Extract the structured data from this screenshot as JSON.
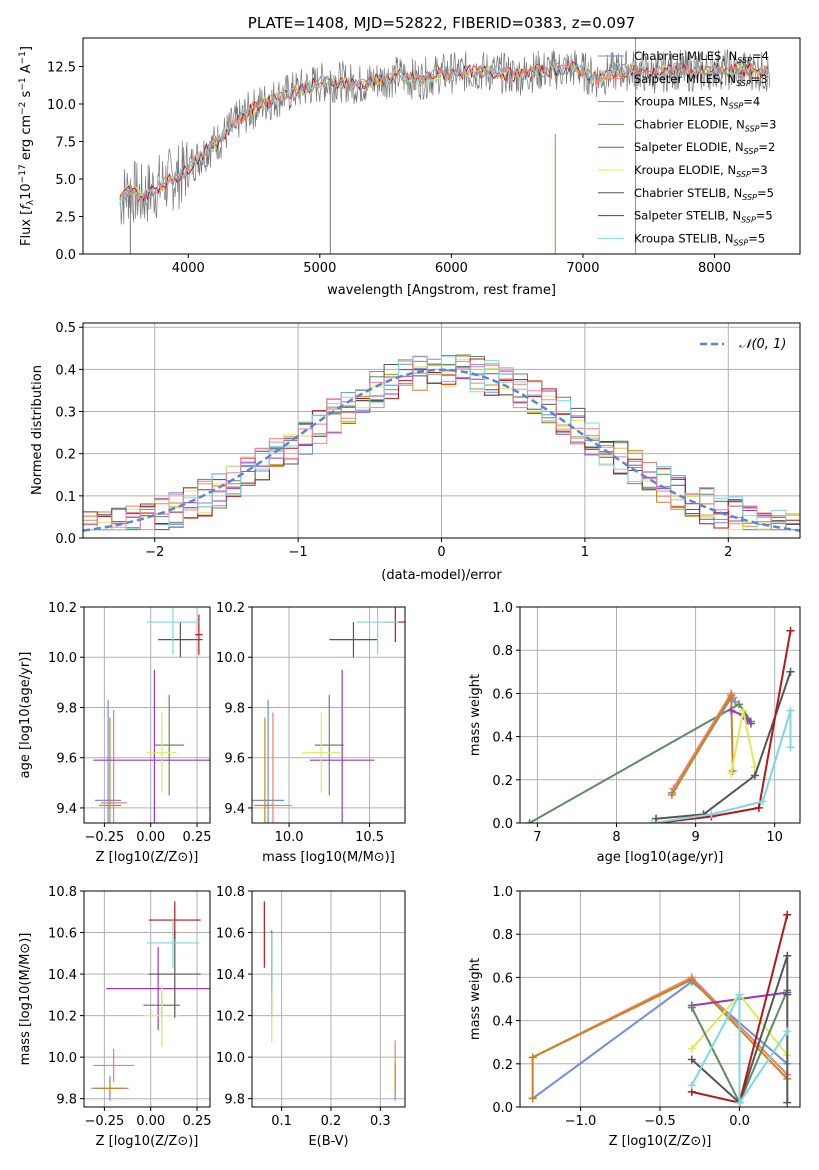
{
  "colors": {
    "cM": "#6f8fd6",
    "sM": "#e9826f",
    "kM": "#c8851f",
    "cE": "#5f8d5f",
    "sE": "#9b3bb8",
    "kE": "#d9ec5a",
    "cS": "#555555",
    "sS": "#b41717",
    "kS": "#7fd8e0",
    "grid": "#b0b0b0",
    "spec": "#777777",
    "gauss": "#5b84d6",
    "pink": "#ea88a8"
  },
  "chart_data": [
    {
      "id": "spectrum",
      "type": "line",
      "title": "PLATE=1408, MJD=52822, FIBERID=0383, z=0.097",
      "xlabel": "wavelength [Angstrom, rest frame]",
      "ylabel": "Flux [f_λ 10^-17 erg cm^-2 s^-1 A^-1]",
      "xlim": [
        3200,
        8650
      ],
      "ylim": [
        0,
        14.4
      ],
      "xticks": [
        4000,
        5000,
        6000,
        7000,
        8000
      ],
      "yticks": [
        0.0,
        2.5,
        5.0,
        7.5,
        10.0,
        12.5
      ],
      "legend_position": "upper right",
      "legend": [
        "Chabrier MILES, N_SSP=4",
        "Salpeter MILES, N_SSP=3",
        "Kroupa MILES, N_SSP=4",
        "Chabrier ELODIE, N_SSP=3",
        "Salpeter ELODIE, N_SSP=2",
        "Kroupa ELODIE, N_SSP=3",
        "Chabrier STELIB, N_SSP=5",
        "Salpeter STELIB, N_SSP=5",
        "Kroupa STELIB, N_SSP=5"
      ],
      "data_wavelength": [
        3480,
        3550,
        3650,
        3750,
        3850,
        3950,
        4050,
        4150,
        4250,
        4350,
        4450,
        4550,
        4700,
        4850,
        5000,
        5150,
        5300,
        5450,
        5600,
        5750,
        5900,
        6050,
        6200,
        6350,
        6500,
        6650,
        6800,
        6950,
        7100,
        7250,
        7400,
        7500,
        7600,
        7700,
        7800,
        7900,
        8000,
        8100,
        8200,
        8300,
        8420
      ],
      "data_flux": [
        3.6,
        4.3,
        3.8,
        4.4,
        4.9,
        5.3,
        6.2,
        7.0,
        7.7,
        8.7,
        9.4,
        10.0,
        10.5,
        11.0,
        11.4,
        11.5,
        11.3,
        11.6,
        11.9,
        11.6,
        12.0,
        12.1,
        12.2,
        12.1,
        11.9,
        12.2,
        12.3,
        12.4,
        11.7,
        12.2,
        12.3,
        12.0,
        12.1,
        12.3,
        12.2,
        12.1,
        12.4,
        12.3,
        12.2,
        12.3,
        12.0
      ]
    },
    {
      "id": "residuals",
      "type": "step",
      "xlabel": "(data-model)/error",
      "ylabel": "Normed distribution",
      "xlim": [
        -2.5,
        2.5
      ],
      "ylim": [
        0,
        0.51
      ],
      "xticks": [
        -2,
        -1,
        0,
        1,
        2
      ],
      "yticks": [
        0.0,
        0.1,
        0.2,
        0.3,
        0.4,
        0.5
      ],
      "legend": [
        "𝒩(0, 1)"
      ],
      "legend_position": "upper right",
      "bin_width": 0.1
    },
    {
      "id": "age_vs_Z",
      "type": "errorbar",
      "xlabel": "Z [log10(Z/Z⊙)]",
      "ylabel": "age  [log10(age/yr)]",
      "xlim": [
        -0.36,
        0.32
      ],
      "ylim": [
        9.34,
        10.2
      ],
      "xticks": [
        -0.25,
        0.0,
        0.25
      ],
      "yticks": [
        9.4,
        9.6,
        9.8,
        10.0,
        10.2
      ],
      "points": [
        {
          "s": "cM",
          "x": -0.23,
          "xe": 0.07,
          "y": 9.43,
          "ye": 0.4
        },
        {
          "s": "sM",
          "x": -0.2,
          "xe": 0.07,
          "y": 9.42,
          "ye": 0.37
        },
        {
          "s": "kM",
          "x": -0.22,
          "xe": 0.06,
          "y": 9.41,
          "ye": 0.35
        },
        {
          "s": "cE",
          "x": 0.1,
          "xe": 0.08,
          "y": 9.65,
          "ye": 0.2
        },
        {
          "s": "sE",
          "x": 0.02,
          "xe": 0.33,
          "y": 9.59,
          "ye": 0.36
        },
        {
          "s": "kE",
          "x": 0.06,
          "xe": 0.08,
          "y": 9.62,
          "ye": 0.16
        },
        {
          "s": "cS",
          "x": 0.16,
          "xe": 0.12,
          "y": 10.07,
          "ye": 0.07
        },
        {
          "s": "sS",
          "x": 0.26,
          "xe": 0.02,
          "y": 10.09,
          "ye": 0.08
        },
        {
          "s": "kS",
          "x": 0.12,
          "xe": 0.14,
          "y": 10.14,
          "ye": 0.13
        }
      ]
    },
    {
      "id": "age_vs_mass",
      "type": "errorbar",
      "xlabel": "mass [log10(M/M⊙)]",
      "ylabel": "",
      "xlim": [
        9.77,
        10.72
      ],
      "ylim": [
        9.34,
        10.2
      ],
      "xticks": [
        10.0,
        10.5
      ],
      "yticks": [
        9.4,
        9.6,
        9.8,
        10.0,
        10.2
      ],
      "points": [
        {
          "s": "cM",
          "x": 9.87,
          "xe": 0.1,
          "y": 9.43,
          "ye": 0.4
        },
        {
          "s": "sM",
          "x": 9.9,
          "xe": 0.12,
          "y": 9.41,
          "ye": 0.37
        },
        {
          "s": "kM",
          "x": 9.85,
          "xe": 0.05,
          "y": 9.41,
          "ye": 0.35
        },
        {
          "s": "cE",
          "x": 10.25,
          "xe": 0.09,
          "y": 9.65,
          "ye": 0.2
        },
        {
          "s": "sE",
          "x": 10.33,
          "xe": 0.2,
          "y": 9.59,
          "ye": 0.36
        },
        {
          "s": "kE",
          "x": 10.2,
          "xe": 0.12,
          "y": 9.62,
          "ye": 0.16
        },
        {
          "s": "cS",
          "x": 10.4,
          "xe": 0.15,
          "y": 10.07,
          "ye": 0.07
        },
        {
          "s": "sS",
          "x": 10.66,
          "xe": 0.07,
          "y": 10.14,
          "ye": 0.08
        },
        {
          "s": "kS",
          "x": 10.55,
          "xe": 0.13,
          "y": 10.14,
          "ye": 0.13
        }
      ]
    },
    {
      "id": "weight_vs_age",
      "type": "line",
      "xlabel": "age  [log10(age/yr)]",
      "ylabel": "mass weight",
      "xlim": [
        6.78,
        10.32
      ],
      "ylim": [
        0,
        1
      ],
      "xticks": [
        7,
        8,
        9,
        10
      ],
      "yticks": [
        0.0,
        0.2,
        0.4,
        0.6,
        0.8,
        1.0
      ],
      "series": [
        {
          "s": "cE",
          "x": [
            6.9,
            9.55,
            9.7
          ],
          "y": [
            0.0,
            0.55,
            0.47
          ]
        },
        {
          "s": "cM",
          "x": [
            8.7,
            9.45,
            9.5
          ],
          "y": [
            0.14,
            0.58,
            0.56
          ]
        },
        {
          "s": "sM",
          "x": [
            8.72,
            9.45,
            9.48
          ],
          "y": [
            0.16,
            0.6,
            0.58
          ]
        },
        {
          "s": "kM",
          "x": [
            8.7,
            9.45,
            9.47
          ],
          "y": [
            0.13,
            0.59,
            0.24
          ]
        },
        {
          "s": "sE",
          "x": [
            9.45,
            9.6,
            9.65,
            9.7
          ],
          "y": [
            0.52,
            0.5,
            0.48,
            0.46
          ]
        },
        {
          "s": "kE",
          "x": [
            9.45,
            9.6,
            9.75
          ],
          "y": [
            0.23,
            0.52,
            0.26
          ]
        },
        {
          "s": "cS",
          "x": [
            8.5,
            9.1,
            9.75,
            10.2
          ],
          "y": [
            0.02,
            0.04,
            0.22,
            0.7
          ]
        },
        {
          "s": "sS",
          "x": [
            8.5,
            9.2,
            9.8,
            10.2
          ],
          "y": [
            0.0,
            0.03,
            0.07,
            0.89
          ]
        },
        {
          "s": "kS",
          "x": [
            8.45,
            9.2,
            9.85,
            10.2,
            10.2
          ],
          "y": [
            0.0,
            0.04,
            0.1,
            0.52,
            0.35
          ]
        }
      ]
    },
    {
      "id": "mass_vs_Z",
      "type": "errorbar",
      "xlabel": "Z [log10(Z/Z⊙)]",
      "ylabel": "mass [log10(M/M⊙)]",
      "xlim": [
        -0.36,
        0.32
      ],
      "ylim": [
        9.76,
        10.8
      ],
      "xticks": [
        -0.25,
        0.0,
        0.25
      ],
      "yticks": [
        9.8,
        10.0,
        10.2,
        10.4,
        10.6,
        10.8
      ],
      "points": [
        {
          "s": "cM",
          "x": -0.22,
          "xe": 0.1,
          "y": 9.85,
          "ye": 0.06
        },
        {
          "s": "sM",
          "x": -0.2,
          "xe": 0.11,
          "y": 9.96,
          "ye": 0.08
        },
        {
          "s": "kM",
          "x": -0.22,
          "xe": 0.08,
          "y": 9.85,
          "ye": 0.04
        },
        {
          "s": "cE",
          "x": 0.06,
          "xe": 0.1,
          "y": 10.25,
          "ye": 0.06
        },
        {
          "s": "sE",
          "x": 0.04,
          "xe": 0.28,
          "y": 10.33,
          "ye": 0.2
        },
        {
          "s": "kE",
          "x": 0.06,
          "xe": 0.1,
          "y": 10.2,
          "ye": 0.15
        },
        {
          "s": "cS",
          "x": 0.13,
          "xe": 0.14,
          "y": 10.4,
          "ye": 0.21
        },
        {
          "s": "sS",
          "x": 0.13,
          "xe": 0.14,
          "y": 10.66,
          "ye": 0.09
        },
        {
          "s": "kS",
          "x": 0.12,
          "xe": 0.14,
          "y": 10.55,
          "ye": 0.12
        }
      ]
    },
    {
      "id": "mass_vs_EBV",
      "type": "errorbar",
      "xlabel": "E(B-V)",
      "ylabel": "",
      "xlim": [
        0.04,
        0.35
      ],
      "ylim": [
        9.76,
        10.8
      ],
      "xticks": [
        0.1,
        0.2,
        0.3
      ],
      "yticks": [
        9.8,
        10.0,
        10.2,
        10.4,
        10.6,
        10.8
      ],
      "points": [
        {
          "s": "sS",
          "x": 0.065,
          "xe": 0.0,
          "y": 10.59,
          "ye": 0.16
        },
        {
          "s": "cS",
          "x": 0.08,
          "xe": 0.0,
          "y": 10.4,
          "ye": 0.21
        },
        {
          "s": "kE",
          "x": 0.08,
          "xe": 0.0,
          "y": 10.2,
          "ye": 0.13
        },
        {
          "s": "kS",
          "x": 0.08,
          "xe": 0.0,
          "y": 10.45,
          "ye": 0.15
        },
        {
          "s": "cM",
          "x": 0.33,
          "xe": 0.0,
          "y": 9.85,
          "ye": 0.06
        },
        {
          "s": "sM",
          "x": 0.33,
          "xe": 0.0,
          "y": 9.98,
          "ye": 0.1
        },
        {
          "s": "kM",
          "x": 0.33,
          "xe": 0.0,
          "y": 9.9,
          "ye": 0.07
        }
      ]
    },
    {
      "id": "weight_vs_Z",
      "type": "line",
      "xlabel": "Z [log10(Z/Z⊙)]",
      "ylabel": "mass weight",
      "xlim": [
        -1.38,
        0.38
      ],
      "ylim": [
        0,
        1
      ],
      "xticks": [
        -1.0,
        -0.5,
        0.0
      ],
      "yticks": [
        0.0,
        0.2,
        0.4,
        0.6,
        0.8,
        1.0
      ],
      "series": [
        {
          "s": "cM",
          "x": [
            -1.3,
            -0.3,
            0.3
          ],
          "y": [
            0.04,
            0.58,
            0.2
          ]
        },
        {
          "s": "sM",
          "x": [
            -1.3,
            -0.3,
            0.3
          ],
          "y": [
            0.23,
            0.6,
            0.15
          ]
        },
        {
          "s": "kM",
          "x": [
            -1.3,
            -1.3,
            -0.3,
            0.3
          ],
          "y": [
            0.04,
            0.23,
            0.59,
            0.13
          ]
        },
        {
          "s": "sE",
          "x": [
            -0.3,
            0.3
          ],
          "y": [
            0.47,
            0.53
          ]
        },
        {
          "s": "kE",
          "x": [
            -0.3,
            0.0,
            0.3
          ],
          "y": [
            0.27,
            0.52,
            0.24
          ]
        },
        {
          "s": "cE",
          "x": [
            -0.3,
            0.0,
            0.3
          ],
          "y": [
            0.46,
            0.02,
            0.54
          ]
        },
        {
          "s": "cS",
          "x": [
            -0.3,
            0.0,
            0.3,
            0.3,
            0.3
          ],
          "y": [
            0.22,
            0.02,
            0.7,
            0.52,
            0.02
          ]
        },
        {
          "s": "sS",
          "x": [
            -0.3,
            0.0,
            0.3
          ],
          "y": [
            0.07,
            0.02,
            0.89
          ]
        },
        {
          "s": "kS",
          "x": [
            -0.3,
            0.0,
            0.0,
            0.3
          ],
          "y": [
            0.1,
            0.52,
            0.02,
            0.35
          ]
        }
      ]
    }
  ]
}
